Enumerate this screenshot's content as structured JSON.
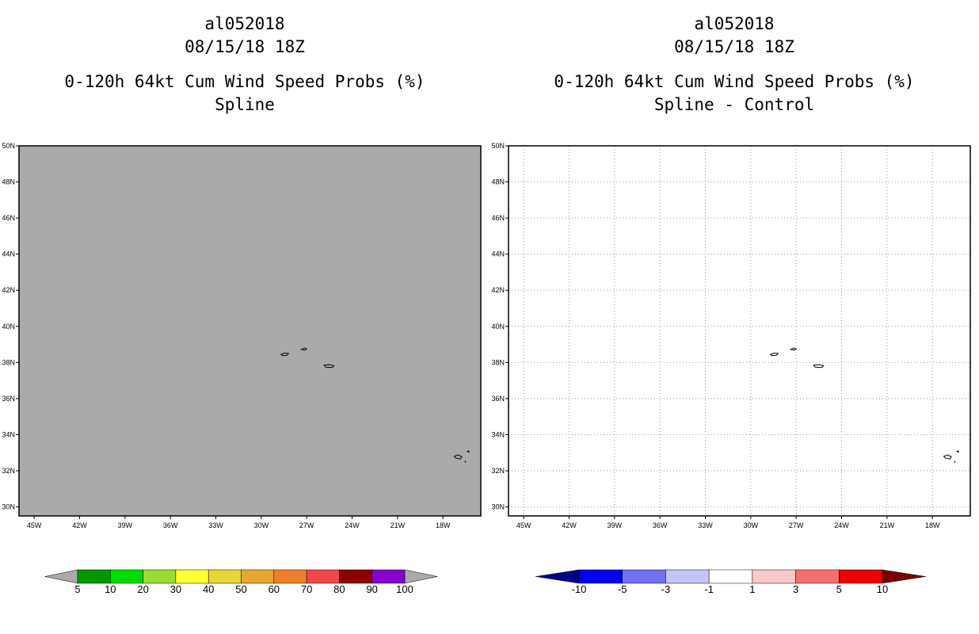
{
  "panels": [
    {
      "id": "left",
      "storm_id": "al052018",
      "datetime": "08/15/18 18Z",
      "product": "0-120h 64kt Cum Wind Speed Probs (%)",
      "subtitle": "Spline",
      "background": "#aaaaaa",
      "show_grid": false,
      "colorbar": {
        "labels": [
          "5",
          "10",
          "20",
          "30",
          "40",
          "50",
          "60",
          "70",
          "80",
          "90",
          "100"
        ],
        "colors": [
          "#009900",
          "#00dd00",
          "#99dd33",
          "#ffff33",
          "#e8d53a",
          "#e8a830",
          "#ee7f2d",
          "#f04848",
          "#8b0000",
          "#8800cc"
        ],
        "low_arrow_color": "#aaaaaa",
        "high_arrow_color": "#aaaaaa"
      }
    },
    {
      "id": "right",
      "storm_id": "al052018",
      "datetime": "08/15/18 18Z",
      "product": "0-120h 64kt Cum Wind Speed Probs (%)",
      "subtitle": "Spline - Control",
      "background": "#ffffff",
      "show_grid": true,
      "colorbar": {
        "labels": [
          "-10",
          "-5",
          "-3",
          "-1",
          "1",
          "3",
          "5",
          "10"
        ],
        "colors": [
          "#0000ee",
          "#7070f0",
          "#c4c4f8",
          "#ffffff",
          "#fac8c8",
          "#f47070",
          "#ee0000"
        ],
        "low_arrow_color": "#000088",
        "high_arrow_color": "#770000"
      }
    }
  ],
  "map": {
    "lon_min": -46,
    "lon_max": -15.5,
    "lat_min": 29.5,
    "lat_max": 50,
    "lon_ticks": [
      -45,
      -42,
      -39,
      -36,
      -33,
      -30,
      -27,
      -24,
      -21,
      -18
    ],
    "lon_labels": [
      "45W",
      "42W",
      "39W",
      "36W",
      "33W",
      "30W",
      "27W",
      "24W",
      "21W",
      "18W"
    ],
    "lat_ticks": [
      30,
      32,
      34,
      36,
      38,
      40,
      42,
      44,
      46,
      48,
      50
    ],
    "lat_labels": [
      "30N",
      "32N",
      "34N",
      "36N",
      "38N",
      "40N",
      "42N",
      "44N",
      "46N",
      "48N",
      "50N"
    ]
  },
  "islands": [
    {
      "name": "pico-faial",
      "coords": [
        [
          -28.7,
          38.45
        ],
        [
          -28.45,
          38.52
        ],
        [
          -28.2,
          38.5
        ],
        [
          -28.3,
          38.4
        ],
        [
          -28.6,
          38.38
        ]
      ]
    },
    {
      "name": "terceira",
      "coords": [
        [
          -27.35,
          38.72
        ],
        [
          -27.15,
          38.8
        ],
        [
          -27.0,
          38.75
        ],
        [
          -27.1,
          38.68
        ]
      ]
    },
    {
      "name": "sao-miguel",
      "coords": [
        [
          -25.85,
          37.85
        ],
        [
          -25.5,
          37.88
        ],
        [
          -25.2,
          37.82
        ],
        [
          -25.3,
          37.72
        ],
        [
          -25.75,
          37.74
        ]
      ]
    },
    {
      "name": "madeira",
      "coords": [
        [
          -17.25,
          32.8
        ],
        [
          -17.0,
          32.88
        ],
        [
          -16.75,
          32.78
        ],
        [
          -16.85,
          32.65
        ],
        [
          -17.15,
          32.7
        ]
      ]
    },
    {
      "name": "porto-santo",
      "coords": [
        [
          -16.38,
          33.07
        ],
        [
          -16.3,
          33.1
        ],
        [
          -16.28,
          33.04
        ]
      ]
    },
    {
      "name": "desertas",
      "coords": [
        [
          -16.55,
          32.55
        ],
        [
          -16.5,
          32.45
        ]
      ]
    }
  ]
}
